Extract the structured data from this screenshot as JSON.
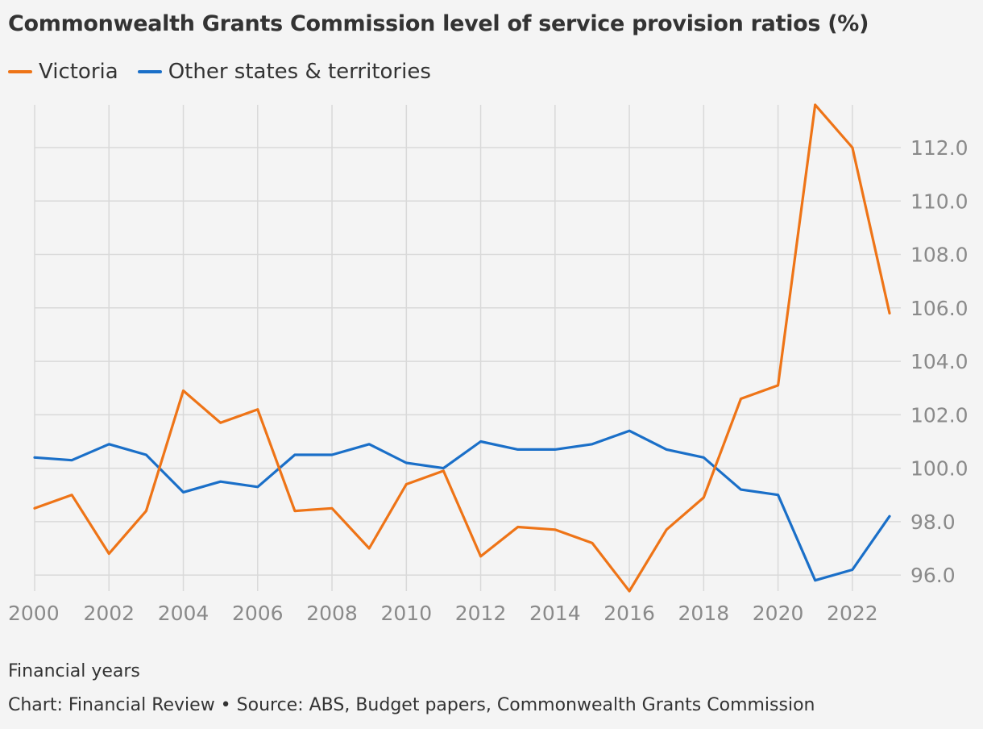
{
  "chart_data": {
    "type": "line",
    "title": "Commonwealth Grants Commission level of service provision ratios (%)",
    "xlabel": "Financial years",
    "source": "Chart: Financial Review • Source: ABS, Budget papers, Commonwealth Grants Commission",
    "x": [
      2000,
      2001,
      2002,
      2003,
      2004,
      2005,
      2006,
      2007,
      2008,
      2009,
      2010,
      2011,
      2012,
      2013,
      2014,
      2015,
      2016,
      2017,
      2018,
      2019,
      2020,
      2021,
      2022,
      2023
    ],
    "x_ticks": [
      "2000",
      "2002",
      "2004",
      "2006",
      "2008",
      "2010",
      "2012",
      "2014",
      "2016",
      "2018",
      "2020",
      "2022"
    ],
    "y_ticks": [
      "96.0",
      "98.0",
      "100.0",
      "102.0",
      "104.0",
      "106.0",
      "108.0",
      "110.0",
      "112.0"
    ],
    "xlim": [
      2000,
      2023
    ],
    "ylim": [
      95.4,
      113.6
    ],
    "grid": true,
    "y_axis_side": "right",
    "legend_position": "top-left",
    "series": [
      {
        "name": "Victoria",
        "color": "#ee7417",
        "values": [
          98.5,
          99.0,
          96.8,
          98.4,
          102.9,
          101.7,
          102.2,
          98.4,
          98.5,
          97.0,
          99.4,
          99.9,
          96.7,
          97.8,
          97.7,
          97.2,
          95.4,
          97.7,
          98.9,
          102.6,
          103.1,
          113.6,
          112.0,
          105.8
        ]
      },
      {
        "name": "Other states & territories",
        "color": "#1a6fc8",
        "values": [
          100.4,
          100.3,
          100.9,
          100.5,
          99.1,
          99.5,
          99.3,
          100.5,
          100.5,
          100.9,
          100.2,
          100.0,
          101.0,
          100.7,
          100.7,
          100.9,
          101.4,
          100.7,
          100.4,
          99.2,
          99.0,
          95.8,
          96.2,
          98.2
        ]
      }
    ]
  }
}
